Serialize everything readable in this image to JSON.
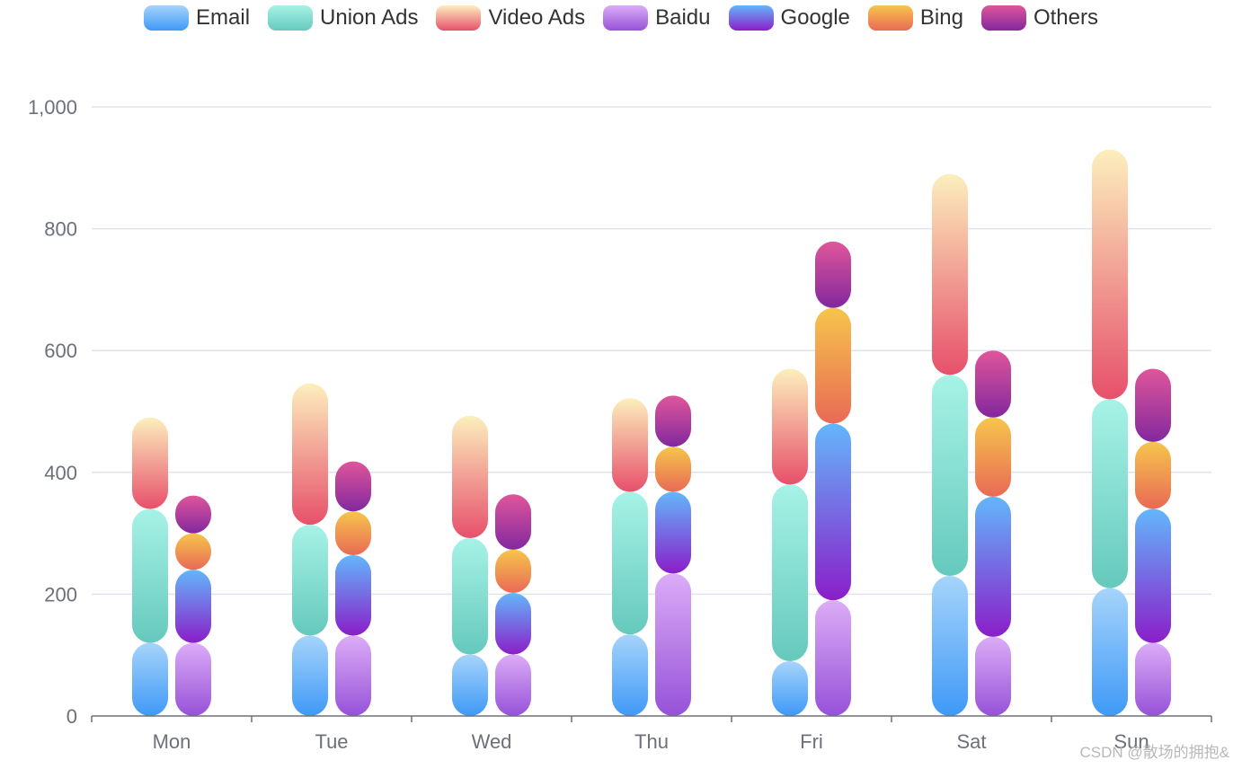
{
  "chart_data": {
    "type": "bar",
    "stacked": true,
    "categories": [
      "Mon",
      "Tue",
      "Wed",
      "Thu",
      "Fri",
      "Sat",
      "Sun"
    ],
    "ylim": [
      0,
      1000
    ],
    "yticks": [
      0,
      200,
      400,
      600,
      800,
      1000
    ],
    "ytick_labels": [
      "0",
      "200",
      "400",
      "600",
      "800",
      "1,000"
    ],
    "grid": true,
    "legend_position": "top-center",
    "series": [
      {
        "name": "Email",
        "stack": "A",
        "values": [
          120,
          132,
          101,
          134,
          90,
          230,
          210
        ],
        "colors": [
          "#a6d4fb",
          "#3f99f7"
        ]
      },
      {
        "name": "Union Ads",
        "stack": "A",
        "values": [
          220,
          182,
          191,
          234,
          290,
          330,
          310
        ],
        "colors": [
          "#a7f2e6",
          "#65c9bc"
        ]
      },
      {
        "name": "Video Ads",
        "stack": "A",
        "values": [
          150,
          232,
          201,
          154,
          190,
          330,
          410
        ],
        "colors": [
          "#fcefbd",
          "#e7506b"
        ]
      },
      {
        "name": "Baidu",
        "stack": "B",
        "values": [
          120,
          132,
          101,
          234,
          190,
          130,
          120
        ],
        "colors": [
          "#dcacf7",
          "#9652d8"
        ]
      },
      {
        "name": "Google",
        "stack": "B",
        "values": [
          120,
          132,
          101,
          134,
          290,
          230,
          220
        ],
        "colors": [
          "#63b6fb",
          "#8a1ec9"
        ]
      },
      {
        "name": "Bing",
        "stack": "B",
        "values": [
          60,
          72,
          71,
          74,
          190,
          130,
          110
        ],
        "colors": [
          "#f6c54c",
          "#e96a55"
        ]
      },
      {
        "name": "Others",
        "stack": "B",
        "values": [
          62,
          82,
          91,
          84,
          109,
          110,
          120
        ],
        "colors": [
          "#df569a",
          "#83289e"
        ]
      }
    ]
  },
  "watermark": "CSDN @散场的拥抱&"
}
